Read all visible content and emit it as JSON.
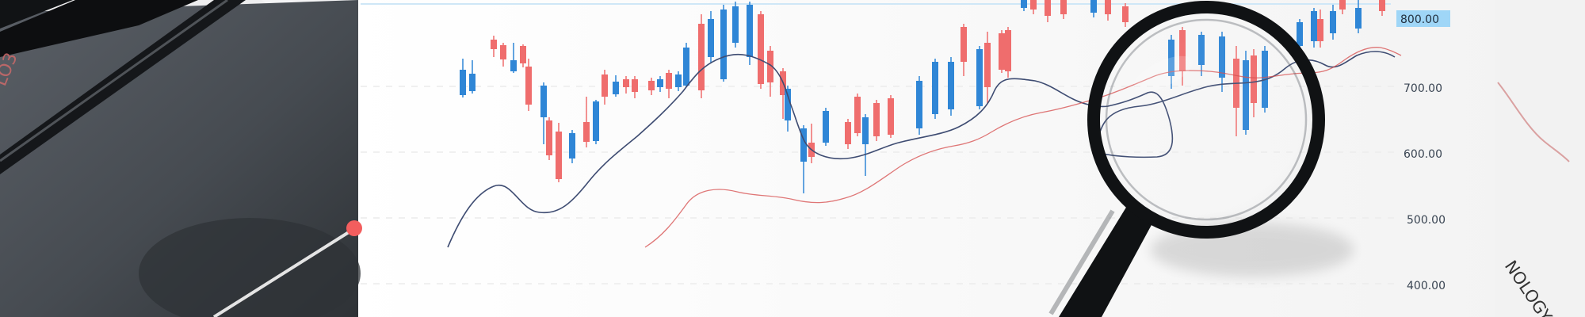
{
  "price_axis": {
    "labels": [
      "800.00",
      "700.00",
      "600.00",
      "500.00",
      "400.00"
    ],
    "highlighted": "800.00"
  },
  "side_text": {
    "left_fragment": "LO3",
    "right_fragment": "NOLOGY"
  },
  "colors": {
    "bull": "#2f86d6",
    "bear": "#ef6d6d",
    "line_dark": "#3e4c72",
    "line_red": "#d64a4a",
    "dark_surface": "#4a4f55",
    "highlight": "#9fd6f7",
    "accent_dot": "#f35e5e"
  },
  "objects": {
    "left_tool_icon": "dark-pointer-icon",
    "magnifier_icon": "magnifying-glass-icon"
  }
}
